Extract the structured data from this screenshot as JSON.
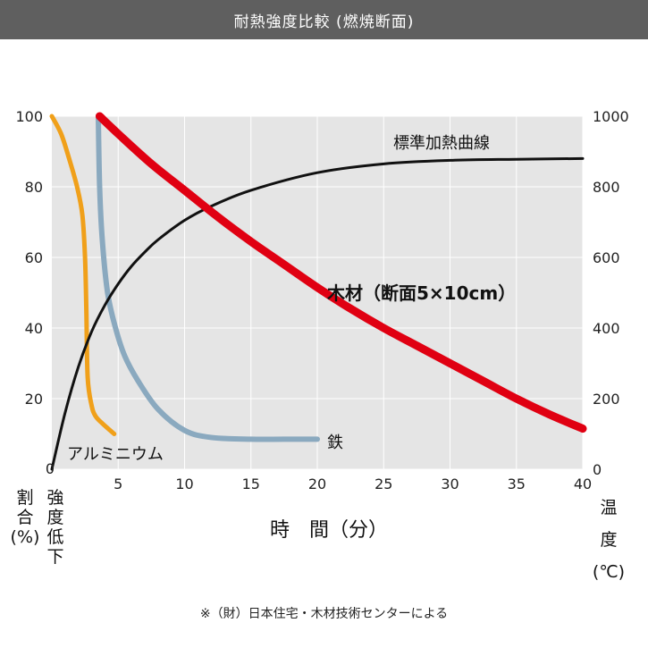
{
  "header": {
    "title": "耐熱強度比較 (燃焼断面)"
  },
  "chart_data": {
    "type": "line",
    "title": "耐熱強度比較 (燃焼断面)",
    "xlabel": "時　間（分）",
    "ylabel_left": "割合(%)",
    "ylabel_left_sub": "強度低下",
    "ylabel_right": "温度(℃)",
    "xlim": [
      0,
      40
    ],
    "ylim_left": [
      0,
      100
    ],
    "ylim_right": [
      0,
      1000
    ],
    "xticks": [
      "5",
      "10",
      "15",
      "20",
      "25",
      "30",
      "35",
      "40"
    ],
    "yticks_left": [
      "0",
      "20",
      "40",
      "60",
      "80",
      "100"
    ],
    "yticks_right": [
      "0",
      "200",
      "400",
      "600",
      "800",
      "1000"
    ],
    "series": [
      {
        "name": "標準加熱曲線",
        "axis": "right",
        "color": "#111111",
        "x": [
          0,
          1,
          2,
          3,
          4,
          5,
          6,
          7,
          8,
          10,
          12,
          15,
          20,
          25,
          30,
          35,
          40
        ],
        "y": [
          0,
          160,
          290,
          390,
          465,
          525,
          575,
          615,
          650,
          705,
          745,
          790,
          840,
          865,
          875,
          878,
          880
        ]
      },
      {
        "name": "木材（断面5×10cm）",
        "axis": "left",
        "color": "#e00012",
        "x": [
          3.6,
          5,
          7.5,
          10,
          12.5,
          15,
          17.5,
          20,
          22.5,
          25,
          27.5,
          30,
          32.5,
          35,
          37.5,
          40
        ],
        "y": [
          100,
          95,
          86.5,
          79,
          71.5,
          64.5,
          58,
          51.5,
          45.5,
          40,
          35,
          30,
          25,
          20,
          15.5,
          11.5
        ]
      },
      {
        "name": "鉄",
        "axis": "left",
        "color": "#8aa9bf",
        "x": [
          3.5,
          3.6,
          3.8,
          4.2,
          4.8,
          5.5,
          6.5,
          8,
          10,
          12,
          15,
          17.5,
          20
        ],
        "y": [
          100,
          80,
          65,
          50,
          40,
          32,
          25,
          17,
          11,
          9,
          8.5,
          8.5,
          8.5
        ]
      },
      {
        "name": "アルミニウム",
        "axis": "left",
        "color": "#f0a01a",
        "x": [
          0,
          0.7,
          1.3,
          1.9,
          2.3,
          2.5,
          2.6,
          2.7,
          3.0,
          3.3,
          3.8,
          4.7
        ],
        "y": [
          100,
          95,
          88,
          80,
          72,
          60,
          45,
          26,
          18,
          15,
          13,
          10
        ]
      }
    ]
  },
  "footer": {
    "source": "※（財）日本住宅・木材技術センターによる"
  }
}
